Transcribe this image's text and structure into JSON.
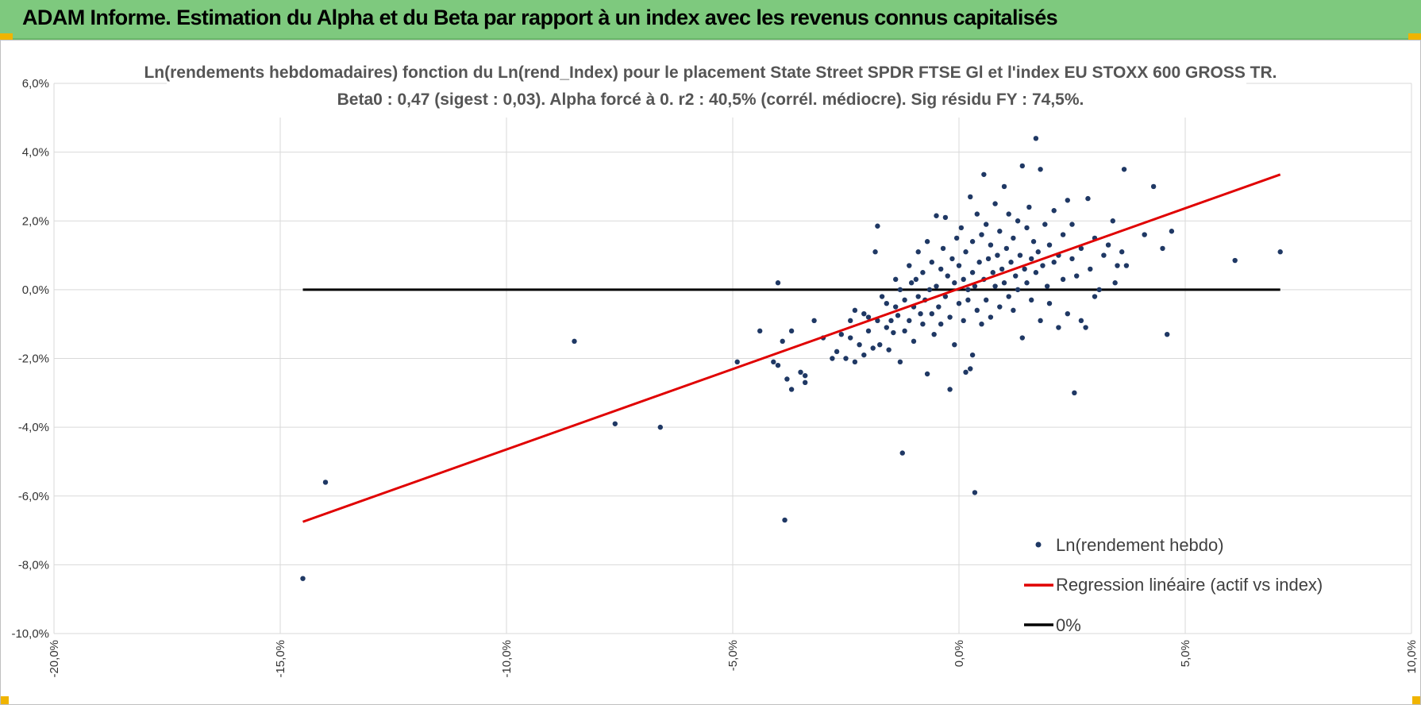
{
  "header": {
    "title": "ADAM Informe. Estimation du Alpha et du Beta par rapport à un index avec les revenus connus capitalisés"
  },
  "colors": {
    "header_bg": "#7ec97e",
    "points": "#1f3864",
    "regression": "#e00000",
    "zero_line": "#000000",
    "grid": "#d9d9d9"
  },
  "chart_data": {
    "type": "scatter",
    "title": "Ln(rendements hebdomadaires) fonction du Ln(rend_Index) pour le placement State Street SPDR FTSE Gl et l'index EU STOXX 600 GROSS TR.",
    "subtitle": "Beta0 : 0,47 (sigest : 0,03).  Alpha forcé à 0. r2 : 40,5% (corrél. médiocre). Sig résidu FY : 74,5%.",
    "xlabel": "",
    "ylabel": "",
    "xlim": [
      -20,
      10
    ],
    "ylim": [
      -10,
      6
    ],
    "x_ticks": [
      -20,
      -15,
      -10,
      -5,
      0,
      5,
      10
    ],
    "y_ticks": [
      6,
      4,
      2,
      0,
      -2,
      -4,
      -6,
      -8,
      -10
    ],
    "x_tick_labels": [
      "-20,0%",
      "-15,0%",
      "-10,0%",
      "-5,0%",
      "0,0%",
      "5,0%",
      "10,0%"
    ],
    "y_tick_labels": [
      "6,0%",
      "4,0%",
      "2,0%",
      "0,0%",
      "-2,0%",
      "-4,0%",
      "-6,0%",
      "-8,0%",
      "-10,0%"
    ],
    "grid": true,
    "legend_position": "bottom-right",
    "series": [
      {
        "name": "Ln(rendement hebdo)",
        "kind": "scatter",
        "points": [
          [
            -14.5,
            -8.4
          ],
          [
            -14.0,
            -5.6
          ],
          [
            -8.5,
            -1.5
          ],
          [
            -7.6,
            -3.9
          ],
          [
            -6.6,
            -4.0
          ],
          [
            -4.9,
            -2.1
          ],
          [
            -4.4,
            -1.2
          ],
          [
            -4.1,
            -2.1
          ],
          [
            -4.0,
            -2.2
          ],
          [
            -4.0,
            0.2
          ],
          [
            -3.9,
            -1.5
          ],
          [
            -3.85,
            -6.7
          ],
          [
            -3.8,
            -2.6
          ],
          [
            -3.7,
            -2.9
          ],
          [
            -3.7,
            -1.2
          ],
          [
            -3.5,
            -2.4
          ],
          [
            -3.4,
            -2.5
          ],
          [
            -3.4,
            -2.7
          ],
          [
            -3.2,
            -0.9
          ],
          [
            -3.0,
            -1.4
          ],
          [
            -2.8,
            -2.0
          ],
          [
            -2.7,
            -1.8
          ],
          [
            -2.6,
            -1.3
          ],
          [
            -2.5,
            -2.0
          ],
          [
            -2.4,
            -0.9
          ],
          [
            -2.4,
            -1.4
          ],
          [
            -2.3,
            -2.1
          ],
          [
            -2.3,
            -0.6
          ],
          [
            -2.2,
            -1.6
          ],
          [
            -2.1,
            -0.7
          ],
          [
            -2.1,
            -1.9
          ],
          [
            -2.0,
            -1.2
          ],
          [
            -2.0,
            -0.8
          ],
          [
            -1.9,
            -1.7
          ],
          [
            -1.85,
            1.1
          ],
          [
            -1.8,
            1.85
          ],
          [
            -1.8,
            -0.9
          ],
          [
            -1.75,
            -1.6
          ],
          [
            -1.7,
            -0.2
          ],
          [
            -1.6,
            -1.1
          ],
          [
            -1.6,
            -0.4
          ],
          [
            -1.55,
            -1.75
          ],
          [
            -1.5,
            -0.9
          ],
          [
            -1.45,
            -1.25
          ],
          [
            -1.4,
            -0.5
          ],
          [
            -1.4,
            0.3
          ],
          [
            -1.35,
            -0.75
          ],
          [
            -1.3,
            -2.1
          ],
          [
            -1.3,
            0.0
          ],
          [
            -1.25,
            -4.75
          ],
          [
            -1.2,
            -1.2
          ],
          [
            -1.2,
            -0.3
          ],
          [
            -1.1,
            0.7
          ],
          [
            -1.1,
            -0.9
          ],
          [
            -1.05,
            0.2
          ],
          [
            -1.0,
            -0.5
          ],
          [
            -1.0,
            -1.5
          ],
          [
            -0.95,
            0.3
          ],
          [
            -0.9,
            -0.2
          ],
          [
            -0.9,
            1.1
          ],
          [
            -0.85,
            -0.7
          ],
          [
            -0.8,
            0.5
          ],
          [
            -0.8,
            -1.0
          ],
          [
            -0.75,
            -0.3
          ],
          [
            -0.7,
            1.4
          ],
          [
            -0.7,
            -2.45
          ],
          [
            -0.65,
            0.0
          ],
          [
            -0.6,
            -0.7
          ],
          [
            -0.6,
            0.8
          ],
          [
            -0.55,
            -1.3
          ],
          [
            -0.5,
            2.15
          ],
          [
            -0.5,
            0.1
          ],
          [
            -0.45,
            -0.5
          ],
          [
            -0.4,
            0.6
          ],
          [
            -0.4,
            -1.0
          ],
          [
            -0.35,
            1.2
          ],
          [
            -0.3,
            -0.2
          ],
          [
            -0.3,
            2.1
          ],
          [
            -0.25,
            0.4
          ],
          [
            -0.2,
            -2.9
          ],
          [
            -0.2,
            -0.8
          ],
          [
            -0.15,
            0.9
          ],
          [
            -0.1,
            0.2
          ],
          [
            -0.1,
            -1.6
          ],
          [
            -0.05,
            1.5
          ],
          [
            0.0,
            -0.4
          ],
          [
            0.0,
            0.7
          ],
          [
            0.05,
            1.8
          ],
          [
            0.1,
            -0.9
          ],
          [
            0.1,
            0.3
          ],
          [
            0.15,
            -2.4
          ],
          [
            0.15,
            1.1
          ],
          [
            0.2,
            0.0
          ],
          [
            0.2,
            -0.3
          ],
          [
            0.25,
            -2.3
          ],
          [
            0.25,
            2.7
          ],
          [
            0.3,
            0.5
          ],
          [
            0.3,
            -1.9
          ],
          [
            0.3,
            1.4
          ],
          [
            0.35,
            0.1
          ],
          [
            0.35,
            -5.9
          ],
          [
            0.4,
            2.2
          ],
          [
            0.4,
            -0.6
          ],
          [
            0.45,
            0.8
          ],
          [
            0.5,
            1.6
          ],
          [
            0.5,
            -1.0
          ],
          [
            0.55,
            3.35
          ],
          [
            0.55,
            0.3
          ],
          [
            0.6,
            1.9
          ],
          [
            0.6,
            -0.3
          ],
          [
            0.65,
            0.9
          ],
          [
            0.7,
            1.3
          ],
          [
            0.7,
            -0.8
          ],
          [
            0.75,
            0.5
          ],
          [
            0.8,
            2.5
          ],
          [
            0.8,
            0.1
          ],
          [
            0.85,
            1.0
          ],
          [
            0.9,
            -0.5
          ],
          [
            0.9,
            1.7
          ],
          [
            0.95,
            0.6
          ],
          [
            1.0,
            3.0
          ],
          [
            1.0,
            0.2
          ],
          [
            1.05,
            1.2
          ],
          [
            1.1,
            -0.2
          ],
          [
            1.1,
            2.2
          ],
          [
            1.15,
            0.8
          ],
          [
            1.2,
            1.5
          ],
          [
            1.2,
            -0.6
          ],
          [
            1.25,
            0.4
          ],
          [
            1.3,
            2.0
          ],
          [
            1.3,
            0.0
          ],
          [
            1.35,
            1.0
          ],
          [
            1.4,
            3.6
          ],
          [
            1.4,
            -1.4
          ],
          [
            1.45,
            0.6
          ],
          [
            1.5,
            1.8
          ],
          [
            1.5,
            0.2
          ],
          [
            1.55,
            2.4
          ],
          [
            1.6,
            0.9
          ],
          [
            1.6,
            -0.3
          ],
          [
            1.65,
            1.4
          ],
          [
            1.7,
            4.4
          ],
          [
            1.7,
            0.5
          ],
          [
            1.75,
            1.1
          ],
          [
            1.8,
            3.5
          ],
          [
            1.8,
            -0.9
          ],
          [
            1.85,
            0.7
          ],
          [
            1.9,
            1.9
          ],
          [
            1.95,
            0.1
          ],
          [
            2.0,
            1.3
          ],
          [
            2.0,
            -0.4
          ],
          [
            2.1,
            0.8
          ],
          [
            2.1,
            2.3
          ],
          [
            2.2,
            1.0
          ],
          [
            2.2,
            -1.1
          ],
          [
            2.3,
            0.3
          ],
          [
            2.3,
            1.6
          ],
          [
            2.4,
            2.6
          ],
          [
            2.4,
            -0.7
          ],
          [
            2.5,
            0.9
          ],
          [
            2.5,
            1.9
          ],
          [
            2.55,
            -3.0
          ],
          [
            2.6,
            0.4
          ],
          [
            2.7,
            1.2
          ],
          [
            2.7,
            -0.9
          ],
          [
            2.8,
            -1.1
          ],
          [
            2.85,
            2.65
          ],
          [
            2.9,
            0.6
          ],
          [
            3.0,
            1.5
          ],
          [
            3.0,
            -0.2
          ],
          [
            3.1,
            0.0
          ],
          [
            3.2,
            1.0
          ],
          [
            3.3,
            1.3
          ],
          [
            3.4,
            2.0
          ],
          [
            3.45,
            0.2
          ],
          [
            3.5,
            0.7
          ],
          [
            3.6,
            1.1
          ],
          [
            3.65,
            3.5
          ],
          [
            3.7,
            0.7
          ],
          [
            4.1,
            1.6
          ],
          [
            4.3,
            3.0
          ],
          [
            4.5,
            1.2
          ],
          [
            4.6,
            -1.3
          ],
          [
            4.7,
            1.7
          ],
          [
            6.1,
            0.85
          ],
          [
            7.1,
            1.1
          ]
        ]
      },
      {
        "name": "Regression linéaire (actif vs index)",
        "kind": "line",
        "points": [
          [
            -14.5,
            -6.75
          ],
          [
            7.1,
            3.35
          ]
        ]
      },
      {
        "name": "0%",
        "kind": "line",
        "points": [
          [
            -14.5,
            0.0
          ],
          [
            7.1,
            0.0
          ]
        ]
      }
    ]
  }
}
